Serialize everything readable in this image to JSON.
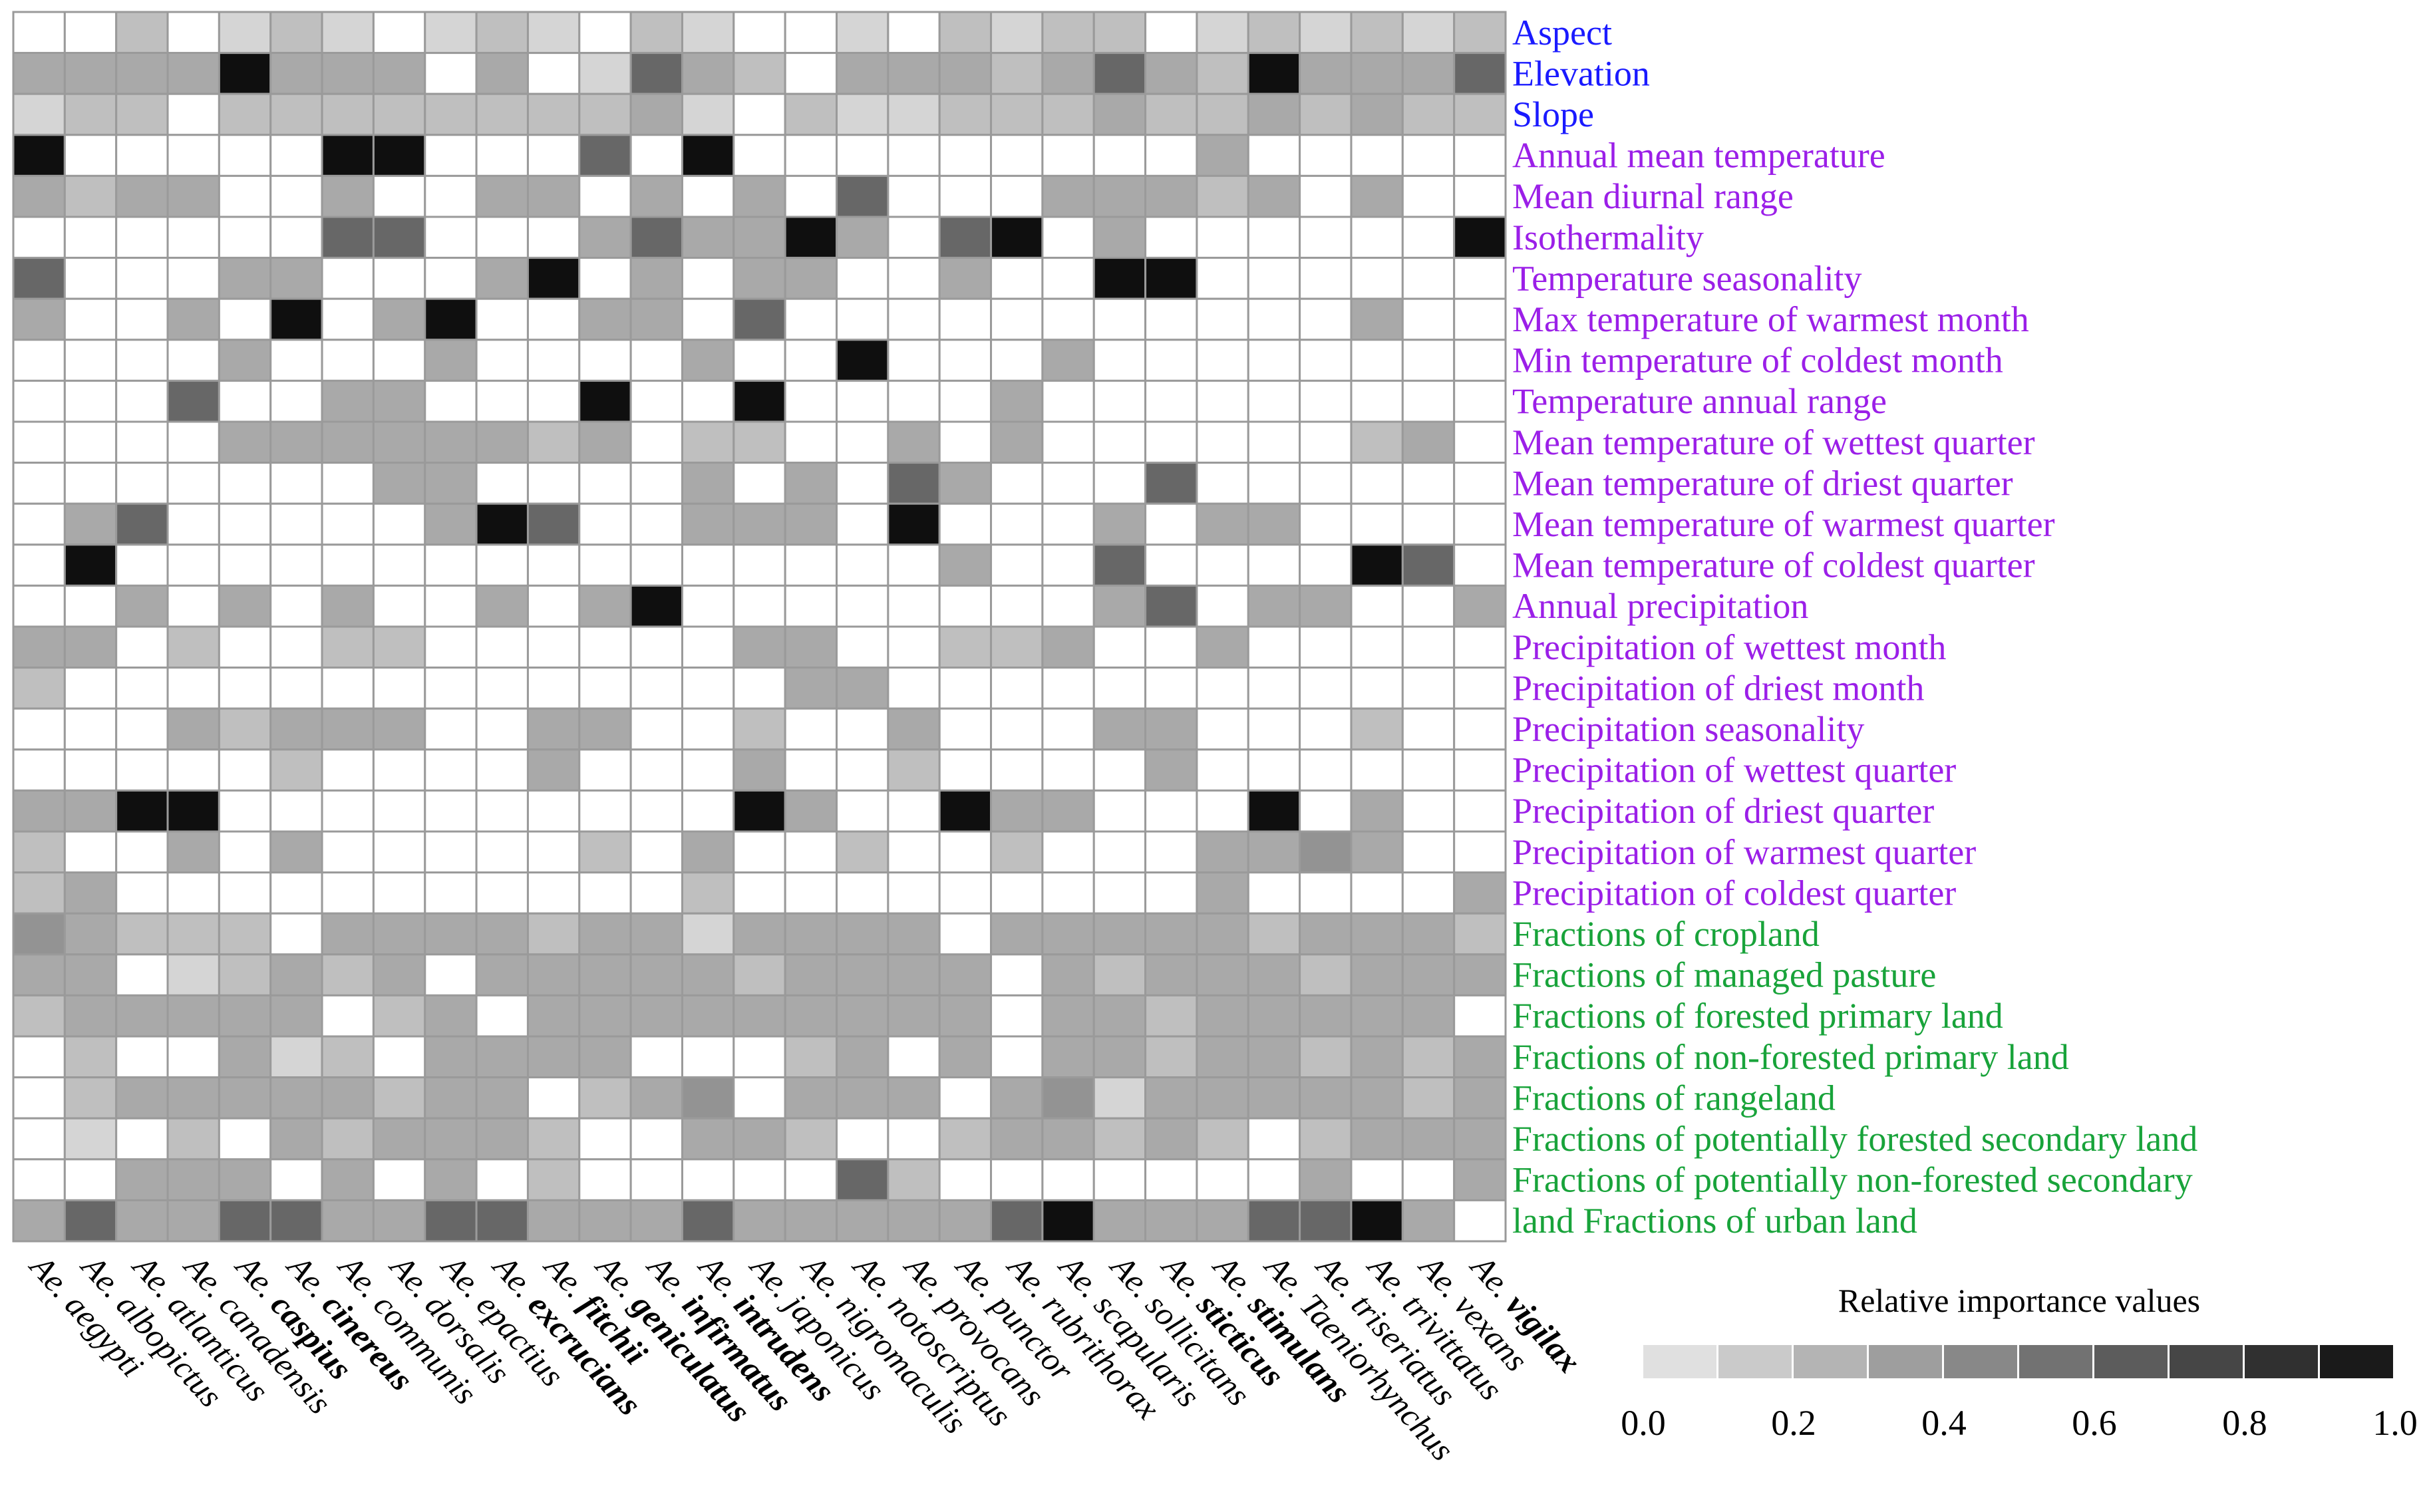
{
  "chart_data": {
    "type": "heatmap",
    "title": "",
    "value_range": [
      0,
      1
    ],
    "legend": {
      "title": "Relative importance values",
      "ticks": [
        "0.0",
        "0.2",
        "0.4",
        "0.6",
        "0.8",
        "1.0"
      ],
      "steps": [
        0.05,
        0.15,
        0.25,
        0.35,
        0.45,
        0.55,
        0.65,
        0.75,
        0.85,
        0.95
      ]
    },
    "row_groups": {
      "topography": "#1a1aff",
      "climate": "#9b1fe8",
      "land_use": "#18a33a"
    },
    "columns": [
      {
        "genus": "Ae.",
        "species": "aegypti",
        "bold": false
      },
      {
        "genus": "Ae.",
        "species": "albopictus",
        "bold": false
      },
      {
        "genus": "Ae.",
        "species": "atlanticus",
        "bold": false
      },
      {
        "genus": "Ae.",
        "species": "canadensis",
        "bold": false
      },
      {
        "genus": "Ae.",
        "species": "caspius",
        "bold": true
      },
      {
        "genus": "Ae.",
        "species": "cinereus",
        "bold": true
      },
      {
        "genus": "Ae.",
        "species": "communis",
        "bold": false
      },
      {
        "genus": "Ae.",
        "species": "dorsalis",
        "bold": false
      },
      {
        "genus": "Ae.",
        "species": "epactius",
        "bold": false
      },
      {
        "genus": "Ae.",
        "species": "excrucians",
        "bold": true
      },
      {
        "genus": "Ae.",
        "species": "fitchii",
        "bold": true
      },
      {
        "genus": "Ae.",
        "species": "geniculatus",
        "bold": true
      },
      {
        "genus": "Ae.",
        "species": "infirmatus",
        "bold": true
      },
      {
        "genus": "Ae.",
        "species": "intrudens",
        "bold": true
      },
      {
        "genus": "Ae.",
        "species": "japonicus",
        "bold": false
      },
      {
        "genus": "Ae.",
        "species": "nigromaculis",
        "bold": false
      },
      {
        "genus": "Ae.",
        "species": "notoscriptus",
        "bold": false
      },
      {
        "genus": "Ae.",
        "species": "provocans",
        "bold": false
      },
      {
        "genus": "Ae.",
        "species": "punctor",
        "bold": false
      },
      {
        "genus": "Ae.",
        "species": "rubrithorax",
        "bold": false
      },
      {
        "genus": "Ae.",
        "species": "scapularis",
        "bold": false
      },
      {
        "genus": "Ae.",
        "species": "sollicitans",
        "bold": false
      },
      {
        "genus": "Ae.",
        "species": "sticticus",
        "bold": true
      },
      {
        "genus": "Ae.",
        "species": "stimulans",
        "bold": true
      },
      {
        "genus": "Ae.",
        "species": "Taeniorhynchus",
        "bold": false
      },
      {
        "genus": "Ae.",
        "species": "triseriatus",
        "bold": false
      },
      {
        "genus": "Ae.",
        "species": "trivittatus",
        "bold": false
      },
      {
        "genus": "Ae.",
        "species": "vexans",
        "bold": false
      },
      {
        "genus": "Ae.",
        "species": "vigilax",
        "bold": true
      }
    ],
    "rows": [
      {
        "label": "Aspect",
        "group": "topography",
        "values": [
          0,
          0,
          0.2,
          0,
          0.1,
          0.2,
          0.1,
          0,
          0.1,
          0.2,
          0.1,
          0,
          0.2,
          0.1,
          0,
          0,
          0.1,
          0,
          0.2,
          0.1,
          0.2,
          0.2,
          0,
          0.1,
          0.2,
          0.1,
          0.2,
          0.1,
          0.2
        ]
      },
      {
        "label": "Elevation",
        "group": "topography",
        "values": [
          0.3,
          0.3,
          0.3,
          0.3,
          1,
          0.3,
          0.3,
          0.3,
          0,
          0.3,
          0,
          0.1,
          0.6,
          0.3,
          0.2,
          0,
          0.3,
          0.3,
          0.3,
          0.2,
          0.3,
          0.6,
          0.3,
          0.2,
          1,
          0.3,
          0.3,
          0.3,
          0.6
        ]
      },
      {
        "label": "Slope",
        "group": "topography",
        "values": [
          0.1,
          0.2,
          0.2,
          0,
          0.2,
          0.2,
          0.2,
          0.2,
          0.2,
          0.2,
          0.2,
          0.2,
          0.3,
          0.1,
          0,
          0.2,
          0.1,
          0.1,
          0.2,
          0.2,
          0.2,
          0.3,
          0.2,
          0.2,
          0.3,
          0.2,
          0.3,
          0.2,
          0.2
        ]
      },
      {
        "label": "Annual mean temperature",
        "group": "climate",
        "values": [
          1,
          0,
          0,
          0,
          0,
          0,
          1,
          1,
          0,
          0,
          0,
          0.6,
          0,
          1,
          0,
          0,
          0,
          0,
          0,
          0,
          0,
          0,
          0,
          0.3,
          0,
          0,
          0,
          0,
          0
        ]
      },
      {
        "label": "Mean diurnal range",
        "group": "climate",
        "values": [
          0.3,
          0.2,
          0.3,
          0.3,
          0,
          0,
          0.3,
          0,
          0,
          0.3,
          0.3,
          0,
          0.3,
          0,
          0.3,
          0,
          0.6,
          0,
          0,
          0,
          0.3,
          0.3,
          0.3,
          0.2,
          0.3,
          0,
          0.3,
          0,
          0
        ]
      },
      {
        "label": "Isothermality",
        "group": "climate",
        "values": [
          0,
          0,
          0,
          0,
          0,
          0,
          0.6,
          0.6,
          0,
          0,
          0,
          0.3,
          0.6,
          0.3,
          0.3,
          1,
          0.3,
          0,
          0.6,
          1,
          0,
          0.3,
          0,
          0,
          0,
          0,
          0,
          0,
          1
        ]
      },
      {
        "label": "Temperature seasonality",
        "group": "climate",
        "values": [
          0.6,
          0,
          0,
          0,
          0.3,
          0.3,
          0,
          0,
          0,
          0.3,
          1,
          0,
          0.3,
          0,
          0.3,
          0.3,
          0,
          0,
          0.3,
          0,
          0,
          1,
          1,
          0,
          0,
          0,
          0,
          0,
          0
        ]
      },
      {
        "label": "Max temperature of warmest month",
        "group": "climate",
        "values": [
          0.3,
          0,
          0,
          0.3,
          0,
          1,
          0,
          0.3,
          1,
          0,
          0,
          0.3,
          0.3,
          0,
          0.6,
          0,
          0,
          0,
          0,
          0,
          0,
          0,
          0,
          0,
          0,
          0,
          0.3,
          0,
          0
        ]
      },
      {
        "label": "Min temperature of coldest month",
        "group": "climate",
        "values": [
          0,
          0,
          0,
          0,
          0.3,
          0,
          0,
          0,
          0.3,
          0,
          0,
          0,
          0,
          0.3,
          0,
          0,
          1,
          0,
          0,
          0,
          0.3,
          0,
          0,
          0,
          0,
          0,
          0,
          0,
          0
        ]
      },
      {
        "label": "Temperature annual range",
        "group": "climate",
        "values": [
          0,
          0,
          0,
          0.6,
          0,
          0,
          0.3,
          0.3,
          0,
          0,
          0,
          1,
          0,
          0,
          1,
          0,
          0,
          0,
          0,
          0.3,
          0,
          0,
          0,
          0,
          0,
          0,
          0,
          0,
          0
        ]
      },
      {
        "label": "Mean temperature of wettest quarter",
        "group": "climate",
        "values": [
          0,
          0,
          0,
          0,
          0.3,
          0.3,
          0.3,
          0.3,
          0.3,
          0.3,
          0.2,
          0.3,
          0,
          0.2,
          0.2,
          0,
          0,
          0.3,
          0,
          0.3,
          0,
          0,
          0,
          0,
          0,
          0,
          0.2,
          0.3,
          0
        ]
      },
      {
        "label": "Mean temperature of driest quarter",
        "group": "climate",
        "values": [
          0,
          0,
          0,
          0,
          0,
          0,
          0,
          0.3,
          0.3,
          0,
          0,
          0,
          0,
          0.3,
          0,
          0.3,
          0,
          0.6,
          0.3,
          0,
          0,
          0,
          0.6,
          0,
          0,
          0,
          0,
          0,
          0
        ]
      },
      {
        "label": "Mean temperature of warmest quarter",
        "group": "climate",
        "values": [
          0,
          0.3,
          0.6,
          0,
          0,
          0,
          0,
          0,
          0.3,
          1,
          0.6,
          0,
          0,
          0.3,
          0.3,
          0.3,
          0,
          1,
          0,
          0,
          0,
          0.3,
          0,
          0.3,
          0.3,
          0,
          0,
          0,
          0
        ]
      },
      {
        "label": "Mean temperature of coldest quarter",
        "group": "climate",
        "values": [
          0,
          1,
          0,
          0,
          0,
          0,
          0,
          0,
          0,
          0,
          0,
          0,
          0,
          0,
          0,
          0,
          0,
          0,
          0.3,
          0,
          0,
          0.6,
          0,
          0,
          0,
          0,
          1,
          0.6,
          0
        ]
      },
      {
        "label": "Annual precipitation",
        "group": "climate",
        "values": [
          0,
          0,
          0.3,
          0,
          0.3,
          0,
          0.3,
          0,
          0,
          0.3,
          0,
          0.3,
          1,
          0,
          0,
          0,
          0,
          0,
          0,
          0,
          0,
          0.3,
          0.6,
          0,
          0.3,
          0.3,
          0,
          0,
          0.3
        ]
      },
      {
        "label": "Precipitation of wettest month",
        "group": "climate",
        "values": [
          0.3,
          0.3,
          0,
          0.2,
          0,
          0,
          0.2,
          0.2,
          0,
          0,
          0,
          0,
          0,
          0,
          0.3,
          0.3,
          0,
          0,
          0.2,
          0.2,
          0.3,
          0,
          0,
          0.3,
          0,
          0,
          0,
          0,
          0
        ]
      },
      {
        "label": "Precipitation of driest month",
        "group": "climate",
        "values": [
          0.2,
          0,
          0,
          0,
          0,
          0,
          0,
          0,
          0,
          0,
          0,
          0,
          0,
          0,
          0,
          0.3,
          0.3,
          0,
          0,
          0,
          0,
          0,
          0,
          0,
          0,
          0,
          0,
          0,
          0
        ]
      },
      {
        "label": "Precipitation seasonality",
        "group": "climate",
        "values": [
          0,
          0,
          0,
          0.3,
          0.2,
          0.3,
          0.3,
          0.3,
          0,
          0,
          0.3,
          0.3,
          0,
          0,
          0.2,
          0,
          0,
          0.3,
          0,
          0,
          0,
          0.3,
          0.3,
          0,
          0,
          0,
          0.2,
          0,
          0
        ]
      },
      {
        "label": "Precipitation of wettest quarter",
        "group": "climate",
        "values": [
          0,
          0,
          0,
          0,
          0,
          0.2,
          0,
          0,
          0,
          0,
          0.3,
          0,
          0,
          0,
          0.3,
          0,
          0,
          0.2,
          0,
          0,
          0,
          0,
          0.3,
          0,
          0,
          0,
          0,
          0,
          0
        ]
      },
      {
        "label": "Precipitation of driest quarter",
        "group": "climate",
        "values": [
          0.3,
          0.3,
          1,
          1,
          0,
          0,
          0,
          0,
          0,
          0,
          0,
          0,
          0,
          0,
          1,
          0.3,
          0,
          0,
          1,
          0.3,
          0.3,
          0,
          0,
          0,
          1,
          0,
          0.3,
          0,
          0
        ]
      },
      {
        "label": "Precipitation of warmest quarter",
        "group": "climate",
        "values": [
          0.2,
          0,
          0,
          0.3,
          0,
          0.3,
          0,
          0,
          0,
          0,
          0,
          0.2,
          0,
          0.3,
          0,
          0,
          0.2,
          0,
          0,
          0.2,
          0,
          0,
          0,
          0.3,
          0.3,
          0.4,
          0.3,
          0,
          0
        ]
      },
      {
        "label": "Precipitation of coldest quarter",
        "group": "climate",
        "values": [
          0.2,
          0.3,
          0,
          0,
          0,
          0,
          0,
          0,
          0,
          0,
          0,
          0,
          0,
          0.2,
          0,
          0,
          0,
          0,
          0,
          0,
          0,
          0,
          0,
          0.3,
          0,
          0,
          0,
          0,
          0.3
        ]
      },
      {
        "label": "Fractions of cropland",
        "group": "land_use",
        "values": [
          0.4,
          0.3,
          0.2,
          0.2,
          0.2,
          0,
          0.3,
          0.3,
          0.3,
          0.3,
          0.2,
          0.3,
          0.3,
          0.1,
          0.3,
          0.3,
          0.3,
          0.3,
          0,
          0.3,
          0.3,
          0.3,
          0.3,
          0.3,
          0.2,
          0.3,
          0.3,
          0.3,
          0.2
        ]
      },
      {
        "label": "Fractions of managed pasture",
        "group": "land_use",
        "values": [
          0.3,
          0.3,
          0,
          0.1,
          0.2,
          0.3,
          0.2,
          0.3,
          0,
          0.3,
          0.3,
          0.3,
          0.3,
          0.3,
          0.2,
          0.3,
          0.3,
          0.3,
          0.3,
          0,
          0.3,
          0.2,
          0.3,
          0.3,
          0.3,
          0.2,
          0.3,
          0.3,
          0.3
        ]
      },
      {
        "label": "Fractions of forested primary land",
        "group": "land_use",
        "values": [
          0.2,
          0.3,
          0.3,
          0.3,
          0.3,
          0.3,
          0,
          0.2,
          0.3,
          0,
          0.3,
          0.3,
          0.3,
          0.3,
          0.3,
          0.3,
          0.3,
          0.3,
          0.3,
          0,
          0.3,
          0.3,
          0.2,
          0.3,
          0.3,
          0.3,
          0.3,
          0.3,
          0
        ]
      },
      {
        "label": "Fractions of non-forested primary land",
        "group": "land_use",
        "values": [
          0,
          0.2,
          0,
          0,
          0.3,
          0.1,
          0.2,
          0,
          0.3,
          0.3,
          0.3,
          0.3,
          0,
          0,
          0,
          0.2,
          0.3,
          0,
          0.3,
          0,
          0.3,
          0.3,
          0.2,
          0.3,
          0.3,
          0.2,
          0.3,
          0.2,
          0.3
        ]
      },
      {
        "label": "Fractions of rangeland",
        "group": "land_use",
        "values": [
          0,
          0.2,
          0.3,
          0.3,
          0.3,
          0.3,
          0.3,
          0.2,
          0.3,
          0.3,
          0,
          0.2,
          0.3,
          0.4,
          0,
          0.3,
          0.3,
          0.3,
          0,
          0.3,
          0.4,
          0.1,
          0.3,
          0.3,
          0.3,
          0.3,
          0.3,
          0.2,
          0.3
        ]
      },
      {
        "label": "Fractions of potentially forested secondary land",
        "group": "land_use",
        "values": [
          0,
          0.1,
          0,
          0.2,
          0,
          0.3,
          0.2,
          0.3,
          0.3,
          0.3,
          0.2,
          0,
          0,
          0.3,
          0.3,
          0.2,
          0,
          0,
          0.2,
          0.3,
          0.3,
          0.2,
          0.3,
          0.2,
          0,
          0.2,
          0.3,
          0.3,
          0.3
        ]
      },
      {
        "label": "Fractions of potentially non-forested secondary",
        "group": "land_use",
        "values": [
          0,
          0,
          0.3,
          0.3,
          0.3,
          0,
          0.3,
          0,
          0.3,
          0,
          0.2,
          0,
          0,
          0,
          0,
          0,
          0.6,
          0.2,
          0,
          0,
          0,
          0,
          0,
          0,
          0,
          0.3,
          0,
          0,
          0.3
        ]
      },
      {
        "label": "land Fractions of urban land",
        "group": "land_use",
        "values": [
          0.3,
          0.6,
          0.3,
          0.3,
          0.6,
          0.6,
          0.3,
          0.3,
          0.6,
          0.6,
          0.3,
          0.3,
          0.3,
          0.6,
          0.3,
          0.3,
          0.3,
          0.3,
          0.3,
          0.6,
          1,
          0.3,
          0.3,
          0.3,
          0.6,
          0.6,
          1,
          0.3,
          0
        ]
      }
    ]
  }
}
